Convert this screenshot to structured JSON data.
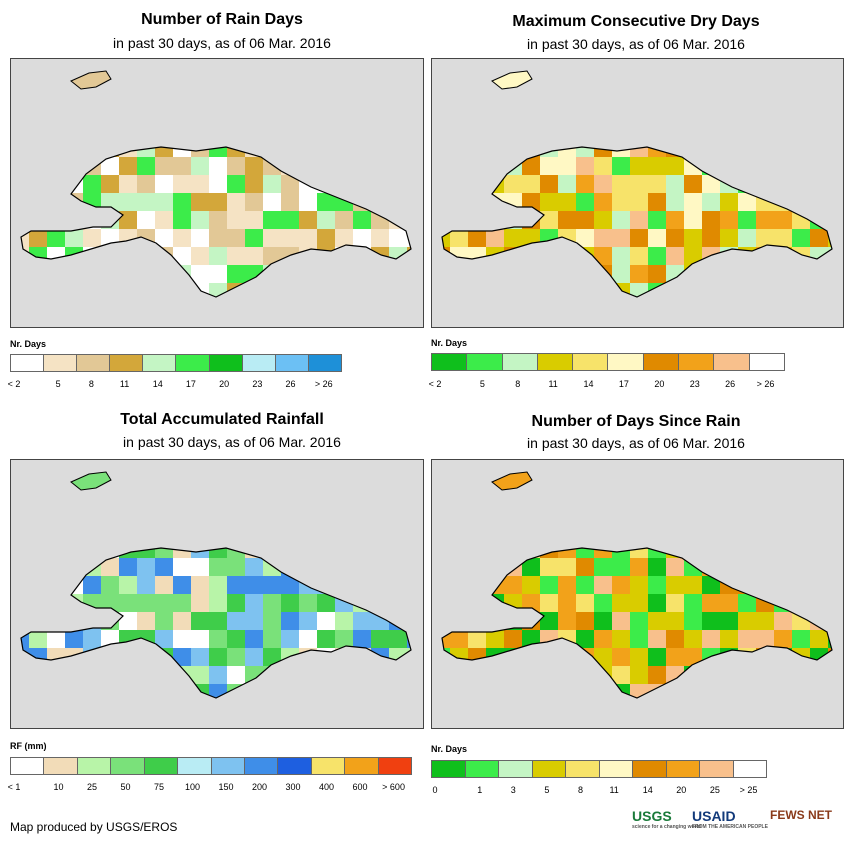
{
  "credit": "Map produced by USGS/EROS",
  "logos": {
    "usgs": "USGS",
    "usaid": "USAID",
    "fews": "FEWS NET",
    "usgs_tag": "science for a changing world",
    "usaid_tag": "FROM THE AMERICAN PEOPLE"
  },
  "panels": [
    {
      "title": "Number of Rain Days",
      "subtitle": "in past 30 days, as of 06 Mar. 2016",
      "legend_title": "Nr. Days",
      "legend_colors": [
        "#ffffff",
        "#f5e3c4",
        "#e2c896",
        "#d3a73a",
        "#c4f5c4",
        "#3cec4a",
        "#0fbf1c",
        "#b9ecf4",
        "#6cc0f4",
        "#1e90d8"
      ],
      "legend_labels": [
        "< 2",
        "5",
        "8",
        "11",
        "14",
        "17",
        "20",
        "23",
        "26",
        "> 26"
      ]
    },
    {
      "title": "Maximum Consecutive Dry Days",
      "subtitle": "in past 30 days, as of 06 Mar. 2016",
      "legend_title": "Nr. Days",
      "legend_colors": [
        "#0fbf1c",
        "#3cec4a",
        "#c4f5c4",
        "#d9cc00",
        "#f7e36a",
        "#fff8c4",
        "#e08a00",
        "#f2a21a",
        "#f8c08c",
        "#ffffff"
      ],
      "legend_labels": [
        "< 2",
        "5",
        "8",
        "11",
        "14",
        "17",
        "20",
        "23",
        "26",
        "> 26"
      ]
    },
    {
      "title": "Total Accumulated Rainfall",
      "subtitle": "in past 30 days, as of 06 Mar. 2016",
      "legend_title": "RF (mm)",
      "legend_colors": [
        "#ffffff",
        "#f2dcb8",
        "#b8f4a8",
        "#7ae17a",
        "#3fcd4a",
        "#b9ecf4",
        "#7ec2f0",
        "#3f8ee8",
        "#1e5fe0",
        "#f7e36a",
        "#f2a21a",
        "#f04010"
      ],
      "legend_labels": [
        "< 1",
        "10",
        "25",
        "50",
        "75",
        "100",
        "150",
        "200",
        "300",
        "400",
        "600",
        "> 600"
      ]
    },
    {
      "title": "Number of Days Since Rain",
      "subtitle": "in past 30 days, as of 06 Mar. 2016",
      "legend_title": "Nr. Days",
      "legend_colors": [
        "#0fbf1c",
        "#3cec4a",
        "#c4f5c4",
        "#d9cc00",
        "#f7e36a",
        "#fff8c4",
        "#e08a00",
        "#f2a21a",
        "#f8c08c",
        "#ffffff"
      ],
      "legend_labels": [
        "0",
        "1",
        "3",
        "5",
        "8",
        "11",
        "14",
        "20",
        "25",
        "> 25"
      ]
    }
  ]
}
